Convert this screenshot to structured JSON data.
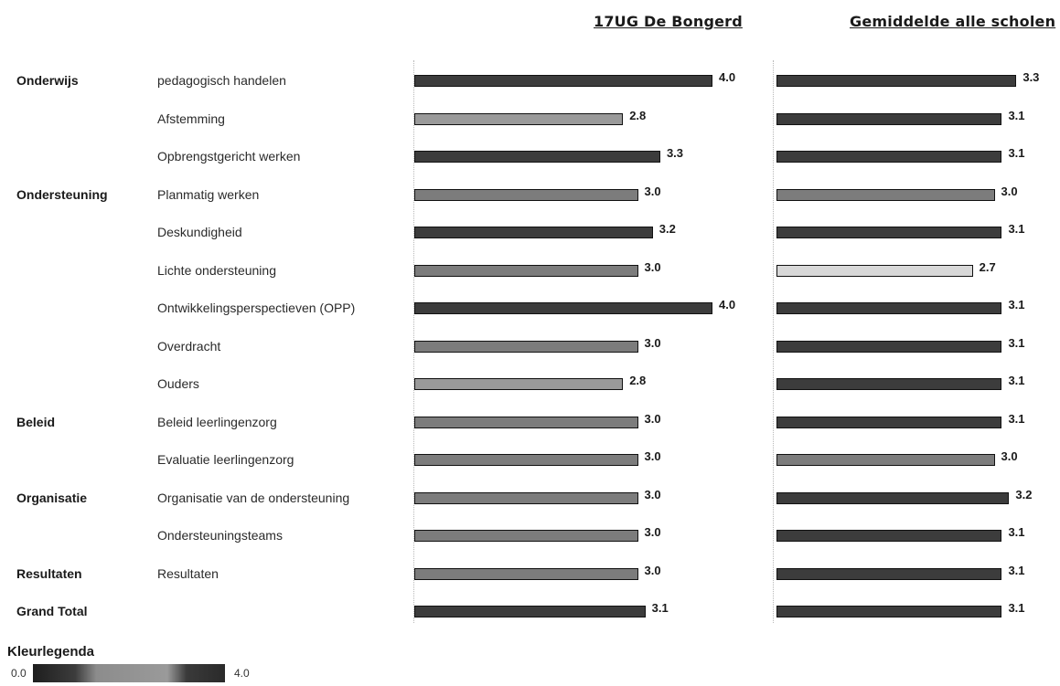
{
  "chart_data": {
    "type": "bar",
    "orientation": "horizontal",
    "series": [
      {
        "name": "17UG De Bongerd",
        "values": [
          4.0,
          2.8,
          3.3,
          3.0,
          3.2,
          3.0,
          4.0,
          3.0,
          2.8,
          3.0,
          3.0,
          3.0,
          3.0,
          3.0,
          3.1
        ],
        "value_labels": [
          "4.0",
          "2.8",
          "3.3",
          "3.0",
          "3.2",
          "3.0",
          "4.0",
          "3.0",
          "2.8",
          "3.0",
          "3.0",
          "3.0",
          "3.0",
          "3.0",
          "3.1"
        ]
      },
      {
        "name": "Gemiddelde alle scholen",
        "values": [
          3.3,
          3.1,
          3.1,
          3.0,
          3.1,
          2.7,
          3.1,
          3.1,
          3.1,
          3.1,
          3.0,
          3.2,
          3.1,
          3.1,
          3.1
        ],
        "value_labels": [
          "3.3",
          "3.1",
          "3.1",
          "3.0",
          "3.1",
          "2.7",
          "3.1",
          "3.1",
          "3.1",
          "3.1",
          "3.0",
          "3.2",
          "3.1",
          "3.1",
          "3.1"
        ]
      }
    ],
    "rows": [
      {
        "category": "Onderwijs",
        "item": "pedagogisch handelen"
      },
      {
        "category": "",
        "item": "Afstemming"
      },
      {
        "category": "",
        "item": "Opbrengstgericht werken"
      },
      {
        "category": "Ondersteuning",
        "item": "Planmatig werken"
      },
      {
        "category": "",
        "item": "Deskundigheid"
      },
      {
        "category": "",
        "item": "Lichte ondersteuning"
      },
      {
        "category": "",
        "item": "Ontwikkelingsperspectieven (OPP)"
      },
      {
        "category": "",
        "item": "Overdracht"
      },
      {
        "category": "",
        "item": "Ouders"
      },
      {
        "category": "Beleid",
        "item": "Beleid leerlingenzorg"
      },
      {
        "category": "",
        "item": "Evaluatie leerlingenzorg"
      },
      {
        "category": "Organisatie",
        "item": "Organisatie van de ondersteuning"
      },
      {
        "category": "",
        "item": "Ondersteuningsteams"
      },
      {
        "category": "Resultaten",
        "item": "Resultaten"
      },
      {
        "category": "Grand Total",
        "item": ""
      }
    ],
    "xlim": [
      0,
      4.0
    ],
    "grid": false,
    "legend": {
      "title": "Kleurlegenda",
      "min_label": "0.0",
      "max_label": "4.0",
      "position": "bottom-left"
    }
  },
  "colors": {
    "bar_low": "#9a9a9a",
    "bar_mid": "#7c7c7c",
    "bar_high": "#3c3c3c",
    "bar_light": "#d8d8d8",
    "bar_border": "#111111"
  }
}
